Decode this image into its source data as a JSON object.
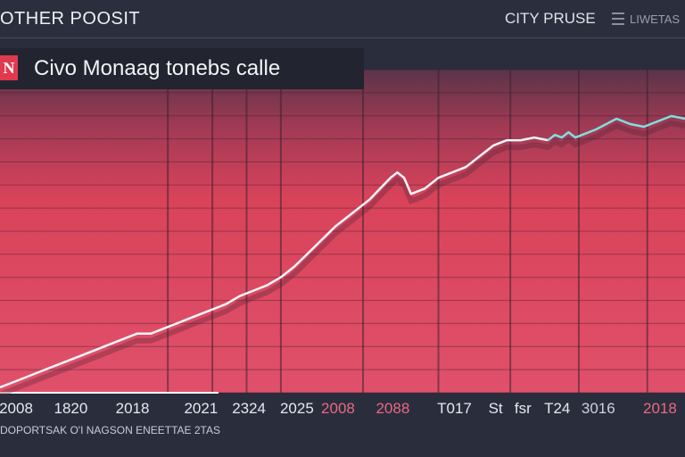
{
  "header": {
    "brand": "OTHER POOSIT",
    "nav_link": "CITY PRUSE",
    "nav_link_2": "LIWETAS",
    "menu_icon": "menu-icon"
  },
  "title": {
    "badge": "N",
    "text": "Civo Monaag tonebs calle"
  },
  "colors": {
    "background": "#2a2d3c",
    "plot_red": "#d9435a",
    "plot_top": "#6e3a52",
    "line": "#f4f6fa",
    "line_highlight": "#7ee0e0",
    "accent_label": "#e76a82"
  },
  "chart_data": {
    "type": "line",
    "title": "Civo Monaag tonebs calle",
    "xlabel": "",
    "ylabel": "",
    "x_tick_labels": [
      "2008",
      "1820",
      "2018",
      "2021",
      "2324",
      "2025",
      "2008",
      "2088",
      "T017",
      "St",
      "fsr",
      "T24",
      "3016",
      "2018"
    ],
    "x_tick_positions": [
      0.0,
      0.08,
      0.17,
      0.27,
      0.34,
      0.41,
      0.47,
      0.55,
      0.64,
      0.7,
      0.74,
      0.79,
      0.85,
      0.94
    ],
    "x_tick_styles": [
      "normal",
      "normal",
      "normal",
      "normal",
      "normal",
      "normal",
      "alt",
      "alt",
      "normal",
      "normal",
      "normal",
      "normal",
      "dim",
      "alt"
    ],
    "grid": true,
    "ylim": [
      0,
      100
    ],
    "series": [
      {
        "values": [
          0,
          2,
          4,
          6,
          8,
          10,
          12,
          14,
          16,
          18,
          20,
          20,
          22,
          24,
          26,
          28,
          30,
          31,
          34,
          36,
          38,
          41,
          45,
          50,
          55,
          60,
          64,
          67,
          70,
          74,
          78,
          80,
          78,
          72,
          74,
          78,
          80,
          82,
          84,
          86,
          88,
          90,
          92,
          92,
          93,
          92,
          94,
          93,
          95,
          93,
          94,
          96,
          100,
          98,
          97,
          99,
          101,
          100
        ],
        "x": [
          0.0,
          0.02,
          0.04,
          0.06,
          0.08,
          0.1,
          0.12,
          0.14,
          0.16,
          0.18,
          0.2,
          0.22,
          0.24,
          0.26,
          0.28,
          0.3,
          0.32,
          0.33,
          0.35,
          0.37,
          0.39,
          0.41,
          0.43,
          0.45,
          0.47,
          0.49,
          0.51,
          0.525,
          0.54,
          0.555,
          0.57,
          0.58,
          0.59,
          0.6,
          0.62,
          0.64,
          0.66,
          0.68,
          0.69,
          0.7,
          0.71,
          0.72,
          0.74,
          0.76,
          0.78,
          0.8,
          0.81,
          0.82,
          0.83,
          0.84,
          0.85,
          0.87,
          0.9,
          0.92,
          0.94,
          0.96,
          0.98,
          1.0
        ]
      }
    ]
  },
  "footer": {
    "note": "DOPORTSAK O'I NAGSON ENEETTAE 2TAS"
  }
}
